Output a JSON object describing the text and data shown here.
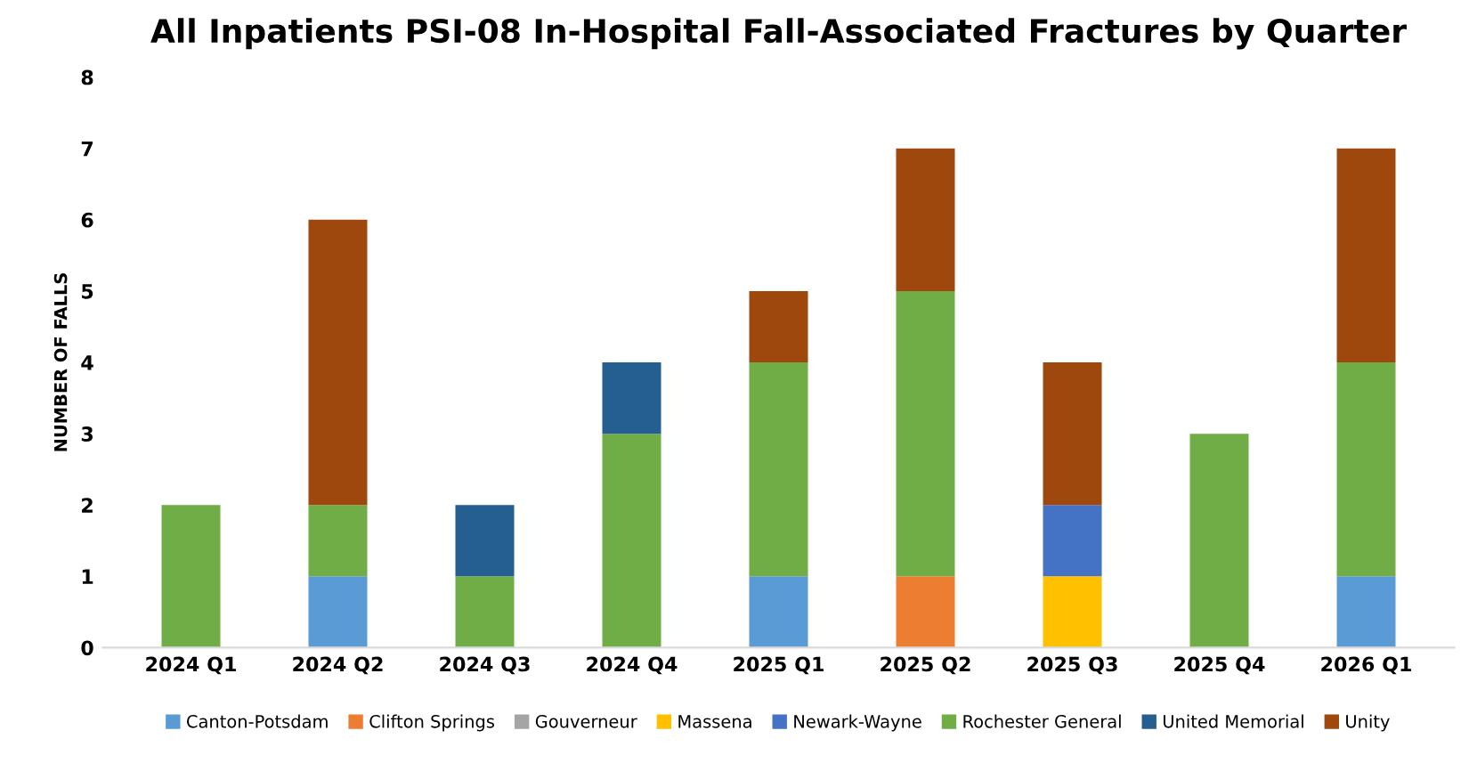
{
  "chart_data": {
    "type": "bar",
    "title": "All Inpatients PSI-08 In-Hospital Fall-Associated Fractures by Quarter",
    "ylabel": "NUMBER OF FALLS",
    "categories": [
      "2024 Q1",
      "2024 Q2",
      "2024 Q3",
      "2024 Q4",
      "2025 Q1",
      "2025 Q2",
      "2025 Q3",
      "2025 Q4",
      "2026 Q1"
    ],
    "stacked": true,
    "ylim": [
      0,
      8
    ],
    "yticks": [
      0,
      1,
      2,
      3,
      4,
      5,
      6,
      7,
      8
    ],
    "grid": false,
    "legend": "bottom",
    "series": [
      {
        "name": "Canton-Potsdam",
        "color": "#5b9bd5",
        "values": [
          0,
          1,
          0,
          0,
          1,
          0,
          0,
          0,
          1
        ]
      },
      {
        "name": "Clifton Springs",
        "color": "#ed7d31",
        "values": [
          0,
          0,
          0,
          0,
          0,
          1,
          0,
          0,
          0
        ]
      },
      {
        "name": "Gouverneur",
        "color": "#a5a5a5",
        "values": [
          0,
          0,
          0,
          0,
          0,
          0,
          0,
          0,
          0
        ]
      },
      {
        "name": "Massena",
        "color": "#ffc000",
        "values": [
          0,
          0,
          0,
          0,
          0,
          0,
          1,
          0,
          0
        ]
      },
      {
        "name": "Newark-Wayne",
        "color": "#4472c4",
        "values": [
          0,
          0,
          0,
          0,
          0,
          0,
          1,
          0,
          0
        ]
      },
      {
        "name": "Rochester General",
        "color": "#70ad47",
        "values": [
          2,
          1,
          1,
          3,
          3,
          4,
          0,
          3,
          3
        ]
      },
      {
        "name": "United Memorial",
        "color": "#255e91",
        "values": [
          0,
          0,
          1,
          1,
          0,
          0,
          0,
          0,
          0
        ]
      },
      {
        "name": "Unity",
        "color": "#9e480e",
        "values": [
          0,
          4,
          0,
          0,
          1,
          2,
          2,
          0,
          3
        ]
      }
    ]
  }
}
